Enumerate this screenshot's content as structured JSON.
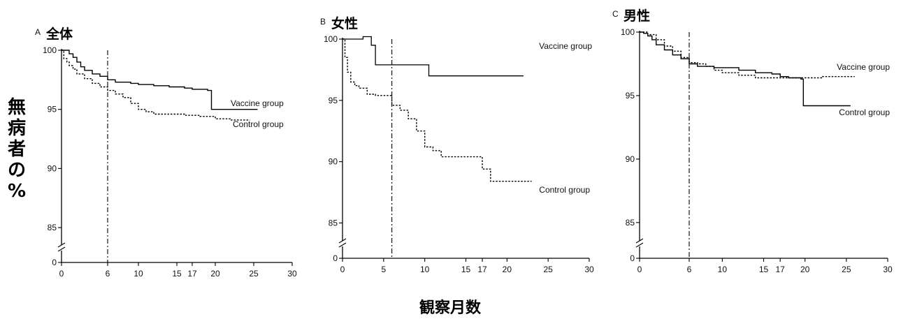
{
  "figure": {
    "ylabel": "無病者の%",
    "xlabel": "観察月数"
  },
  "chart_data": [
    {
      "type": "line",
      "letter": "A",
      "title": "全体",
      "x_ticks": [
        0,
        6,
        10,
        15,
        17,
        20,
        25,
        30
      ],
      "y_ticks": [
        0,
        85,
        90,
        95,
        100
      ],
      "xlim": [
        0,
        30
      ],
      "ylim": [
        0,
        100
      ],
      "y_axis_break": true,
      "reference_line_x": 6,
      "grid": false,
      "series": [
        {
          "name": "Vaccine group",
          "style": "solid",
          "x": [
            0,
            0.5,
            1,
            1.5,
            2,
            2.5,
            3,
            4,
            5,
            6,
            7,
            8,
            9,
            10,
            12,
            14,
            16,
            17,
            19,
            19.5,
            25.5
          ],
          "y": [
            100,
            100,
            99.7,
            99.4,
            99.0,
            98.6,
            98.3,
            98.0,
            97.8,
            97.5,
            97.3,
            97.3,
            97.2,
            97.1,
            97.0,
            96.9,
            96.8,
            96.7,
            96.6,
            95.0,
            95.0
          ]
        },
        {
          "name": "Control group",
          "style": "dotted",
          "x": [
            0,
            0.3,
            0.7,
            1,
            1.5,
            2,
            3,
            4,
            5,
            6,
            7,
            8,
            9,
            10,
            11,
            12,
            14,
            16,
            18,
            20,
            22,
            24.5
          ],
          "y": [
            100,
            99.3,
            99.0,
            98.7,
            98.4,
            98.0,
            97.6,
            97.2,
            96.9,
            96.6,
            96.3,
            96.0,
            95.5,
            95.0,
            94.8,
            94.6,
            94.6,
            94.5,
            94.4,
            94.2,
            94.1,
            94.1
          ]
        }
      ]
    },
    {
      "type": "line",
      "letter": "B",
      "title": "女性",
      "x_ticks": [
        0,
        5,
        10,
        15,
        17,
        20,
        25,
        30
      ],
      "y_ticks": [
        0,
        85,
        90,
        95,
        100
      ],
      "xlim": [
        0,
        30
      ],
      "ylim": [
        0,
        100
      ],
      "y_axis_break": true,
      "reference_line_x": 6,
      "grid": false,
      "series": [
        {
          "name": "Vaccine group",
          "style": "solid",
          "x": [
            0,
            1,
            2.5,
            3.5,
            4,
            5,
            10,
            10.5,
            22
          ],
          "y": [
            100,
            100,
            100.2,
            99.5,
            97.9,
            97.9,
            97.9,
            97.0,
            97.0
          ]
        },
        {
          "name": "Control group",
          "style": "dotted",
          "x": [
            0,
            0.3,
            0.6,
            1,
            1.5,
            2,
            3,
            4,
            5,
            6,
            7,
            8,
            9,
            10,
            11,
            12,
            14,
            16,
            17,
            18,
            20,
            23
          ],
          "y": [
            100,
            98.5,
            97.3,
            96.5,
            96.2,
            96.0,
            95.5,
            95.4,
            95.4,
            94.6,
            94.2,
            93.5,
            92.5,
            91.2,
            90.9,
            90.4,
            90.4,
            90.4,
            89.4,
            88.4,
            88.4,
            88.4
          ]
        }
      ]
    },
    {
      "type": "line",
      "letter": "C",
      "title": "男性",
      "x_ticks": [
        0,
        6,
        10,
        15,
        17,
        20,
        25,
        30
      ],
      "y_ticks": [
        0,
        85,
        90,
        95,
        100
      ],
      "xlim": [
        0,
        30
      ],
      "ylim": [
        0,
        100
      ],
      "y_axis_break": true,
      "reference_line_x": 6,
      "grid": false,
      "series": [
        {
          "name": "Vaccine group",
          "style": "solid",
          "x": [
            0,
            0.5,
            1,
            1.5,
            2,
            3,
            4,
            5,
            6,
            7,
            9,
            12,
            14,
            16,
            17,
            18,
            19.5,
            19.8,
            25.5
          ],
          "y": [
            100,
            99.9,
            99.7,
            99.4,
            99.0,
            98.6,
            98.2,
            97.9,
            97.5,
            97.3,
            97.2,
            97.0,
            96.8,
            96.7,
            96.5,
            96.4,
            96.3,
            94.2,
            94.2
          ]
        },
        {
          "name": "Control group",
          "style": "dotted",
          "x": [
            0,
            1,
            2,
            3,
            4,
            5,
            6,
            7,
            8,
            9,
            10,
            12,
            14,
            16,
            18,
            20,
            22,
            26
          ],
          "y": [
            100,
            99.8,
            99.4,
            98.9,
            98.5,
            98.0,
            97.6,
            97.5,
            97.3,
            97.0,
            96.8,
            96.6,
            96.4,
            96.4,
            96.4,
            96.4,
            96.5,
            96.5
          ]
        }
      ]
    }
  ]
}
